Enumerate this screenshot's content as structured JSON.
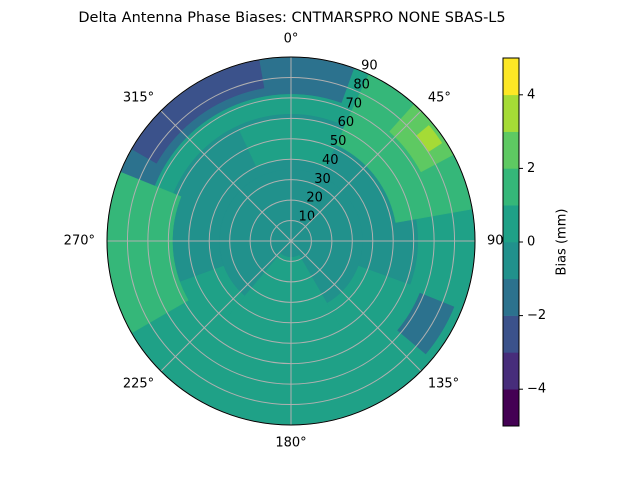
{
  "chart_data": {
    "type": "polar_contour",
    "title": "Delta Antenna Phase Biases: CNTMARSPRO      NONE SBAS-L5",
    "rlim": [
      0,
      90
    ],
    "rticks": [
      10,
      20,
      30,
      40,
      50,
      60,
      70,
      80,
      90
    ],
    "thetaticks": [
      {
        "value": 0,
        "label": "0°"
      },
      {
        "value": 45,
        "label": "45°"
      },
      {
        "value": 90,
        "label": "90"
      },
      {
        "value": 135,
        "label": "135°"
      },
      {
        "value": 180,
        "label": "180°"
      },
      {
        "value": 225,
        "label": "225°"
      },
      {
        "value": 270,
        "label": "270°"
      },
      {
        "value": 315,
        "label": "315°"
      }
    ],
    "grid": true,
    "colorbar": {
      "label": "Bias (mm)",
      "levels": [
        -5,
        -4,
        -3,
        -2,
        -1,
        0,
        1,
        2,
        3,
        4,
        5
      ],
      "colors": [
        "#440154",
        "#472d7b",
        "#3b528b",
        "#2c728e",
        "#21918c",
        "#1fa187",
        "#35b779",
        "#5ec962",
        "#a5db36",
        "#fde725"
      ],
      "ticks": [
        {
          "value": -4,
          "label": "−4"
        },
        {
          "value": -2,
          "label": "−2"
        },
        0,
        2,
        4
      ]
    },
    "regions": [
      {
        "theta": [
          0,
          360
        ],
        "r": [
          0,
          90
        ],
        "value": 0.5
      },
      {
        "theta": [
          0,
          360
        ],
        "r": [
          0,
          35
        ],
        "value": -0.5
      },
      {
        "theta": [
          250,
          110
        ],
        "r": [
          35,
          62
        ],
        "value": -0.5
      },
      {
        "theta": [
          150,
          220
        ],
        "r": [
          8,
          50
        ],
        "value": 0.5
      },
      {
        "theta": [
          290,
          20
        ],
        "r": [
          72,
          90
        ],
        "value": -1.5
      },
      {
        "theta": [
          300,
          350
        ],
        "r": [
          76,
          90
        ],
        "value": -2.5
      },
      {
        "theta": [
          25,
          80
        ],
        "r": [
          52,
          90
        ],
        "value": 1.5
      },
      {
        "theta": [
          42,
          62
        ],
        "r": [
          72,
          90
        ],
        "value": 2.5
      },
      {
        "theta": [
          50,
          57
        ],
        "r": [
          80,
          88
        ],
        "value": 3.5
      },
      {
        "theta": [
          240,
          292
        ],
        "r": [
          58,
          90
        ],
        "value": 1.5
      },
      {
        "theta": [
          112,
          130
        ],
        "r": [
          68,
          86
        ],
        "value": -1.5
      },
      {
        "theta": [
          335,
          25
        ],
        "r": [
          40,
          60
        ],
        "value": 0.5
      }
    ]
  }
}
